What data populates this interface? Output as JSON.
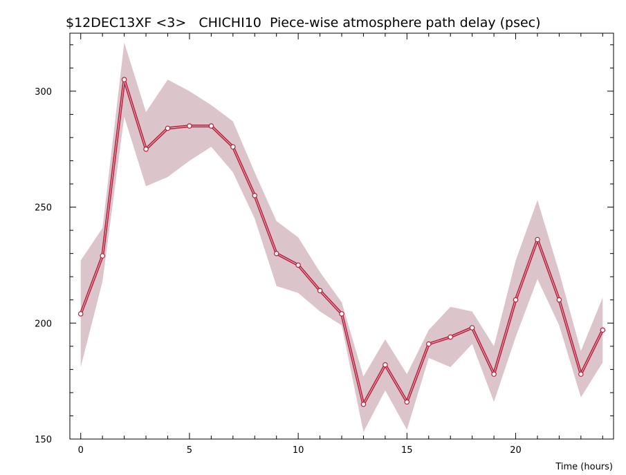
{
  "chart_data": {
    "type": "line",
    "title": "$12DEC13XF <3>   CHICHI10  Piece-wise atmosphere path delay (psec)",
    "xlabel": "Time (hours)",
    "ylabel": "",
    "xlim": [
      -0.5,
      24.5
    ],
    "ylim": [
      150,
      325
    ],
    "x_ticks": [
      0,
      5,
      10,
      15,
      20
    ],
    "x_tick_labels": [
      "0",
      "5",
      "10",
      "15",
      "20"
    ],
    "y_ticks": [
      150,
      200,
      250,
      300
    ],
    "y_tick_labels": [
      "150",
      "200",
      "250",
      "300"
    ],
    "grid": false,
    "legend": "none",
    "line_color": "#b5203f",
    "band_color": "#dcc5ca",
    "series": [
      {
        "x": [
          0,
          1,
          2,
          3,
          4,
          5,
          6,
          7,
          8,
          9,
          10,
          11,
          12,
          13,
          14,
          15,
          16,
          17,
          18,
          19,
          20,
          21,
          22,
          23,
          24
        ],
        "values": [
          204,
          229,
          305,
          275,
          284,
          285,
          285,
          276,
          255,
          230,
          225,
          214,
          204,
          165,
          182,
          166,
          191,
          194,
          198,
          178,
          210,
          236,
          210,
          178,
          197
        ],
        "upper": [
          227,
          241,
          321,
          291,
          305,
          300,
          294,
          287,
          265,
          244,
          237,
          222,
          209,
          177,
          193,
          178,
          197,
          207,
          205,
          190,
          227,
          253,
          222,
          188,
          211
        ],
        "lower": [
          181,
          218,
          289,
          259,
          263,
          270,
          276,
          265,
          245,
          216,
          213,
          205,
          199,
          153,
          171,
          154,
          185,
          181,
          191,
          166,
          194,
          219,
          199,
          168,
          183
        ]
      }
    ]
  }
}
